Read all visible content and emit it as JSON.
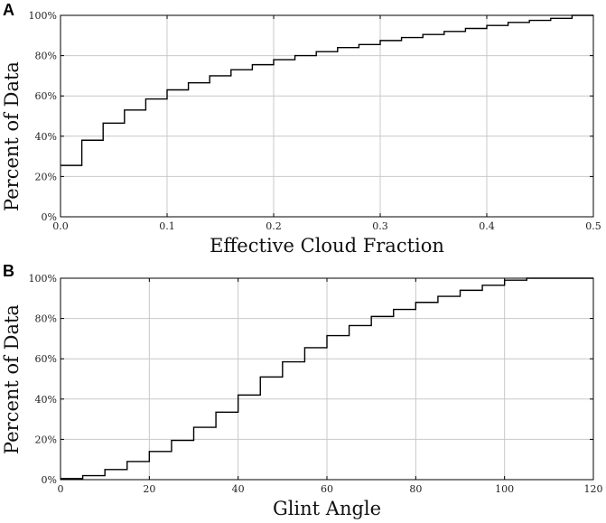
{
  "chart_data": [
    {
      "panel": "A",
      "type": "line",
      "style": "step",
      "title": "",
      "xlabel": "Effective Cloud Fraction",
      "ylabel": "Percent of Data",
      "xlim": [
        0.0,
        0.5
      ],
      "ylim": [
        0,
        100
      ],
      "xticks": [
        0.0,
        0.1,
        0.2,
        0.3,
        0.4,
        0.5
      ],
      "xtick_labels": [
        "0.0",
        "0.1",
        "0.2",
        "0.3",
        "0.4",
        "0.5"
      ],
      "yticks": [
        0,
        20,
        40,
        60,
        80,
        100
      ],
      "ytick_labels": [
        "0%",
        "20%",
        "40%",
        "60%",
        "80%",
        "100%"
      ],
      "grid": true,
      "x": [
        0.0,
        0.02,
        0.04,
        0.06,
        0.08,
        0.1,
        0.12,
        0.14,
        0.16,
        0.18,
        0.2,
        0.22,
        0.24,
        0.26,
        0.28,
        0.3,
        0.32,
        0.34,
        0.36,
        0.38,
        0.4,
        0.42,
        0.44,
        0.46,
        0.48
      ],
      "y": [
        25.5,
        38,
        46.5,
        53,
        58.5,
        63,
        66.5,
        70,
        73,
        75.5,
        78,
        80,
        82,
        84,
        85.5,
        87.5,
        89,
        90.5,
        92,
        93.5,
        95,
        96.5,
        97.5,
        98.5,
        100
      ]
    },
    {
      "panel": "B",
      "type": "line",
      "style": "step",
      "title": "",
      "xlabel": "Glint Angle",
      "ylabel": "Percent of Data",
      "xlim": [
        0,
        120
      ],
      "ylim": [
        0,
        100
      ],
      "xticks": [
        0,
        20,
        40,
        60,
        80,
        100,
        120
      ],
      "xtick_labels": [
        "0",
        "20",
        "40",
        "60",
        "80",
        "100",
        "120"
      ],
      "yticks": [
        0,
        20,
        40,
        60,
        80,
        100
      ],
      "ytick_labels": [
        "0%",
        "20%",
        "40%",
        "60%",
        "80%",
        "100%"
      ],
      "grid": true,
      "x": [
        0,
        5,
        10,
        15,
        20,
        25,
        30,
        35,
        40,
        45,
        50,
        55,
        60,
        65,
        70,
        75,
        80,
        85,
        90,
        95,
        100,
        105,
        110,
        115
      ],
      "y": [
        0.5,
        2,
        5,
        9,
        14,
        19.5,
        26,
        33.5,
        42,
        51,
        58.5,
        65.5,
        71.5,
        76.5,
        81,
        84.5,
        88,
        91,
        94,
        96.5,
        99,
        100,
        100,
        100
      ]
    }
  ]
}
